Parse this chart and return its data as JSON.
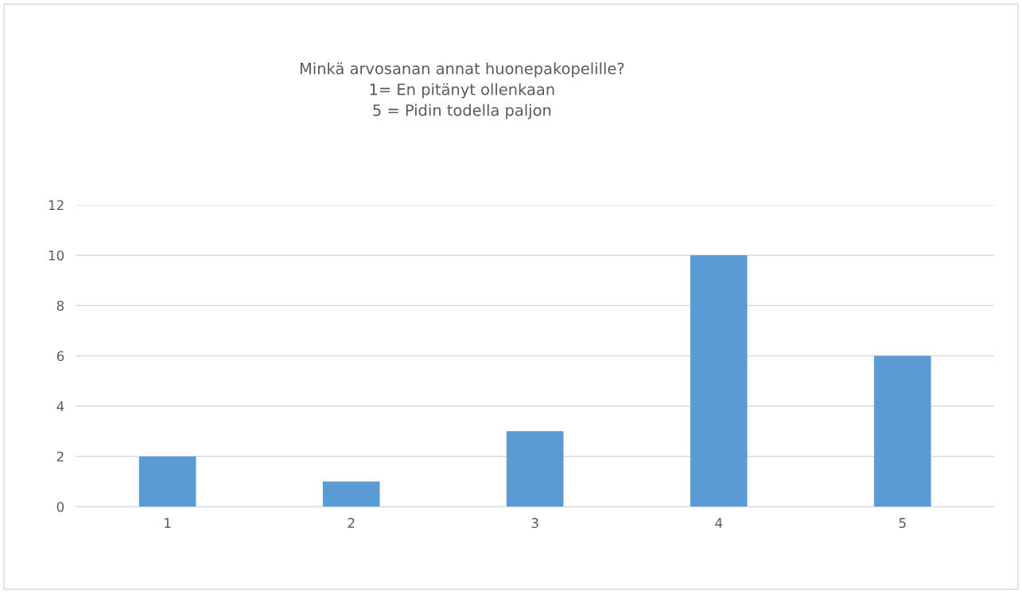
{
  "chart_data": {
    "type": "bar",
    "title": "Minkä arvosanan annat huonepakopelille?\n1= En pitänyt ollenkaan\n5 = Pidin todella paljon",
    "categories": [
      "1",
      "2",
      "3",
      "4",
      "5"
    ],
    "values": [
      2,
      1,
      3,
      10,
      6
    ],
    "color": "#5b9bd5",
    "ylim": [
      0,
      12
    ],
    "yticks": [
      0,
      2,
      4,
      6,
      8,
      10,
      12
    ],
    "grid": "y",
    "legend": false
  }
}
